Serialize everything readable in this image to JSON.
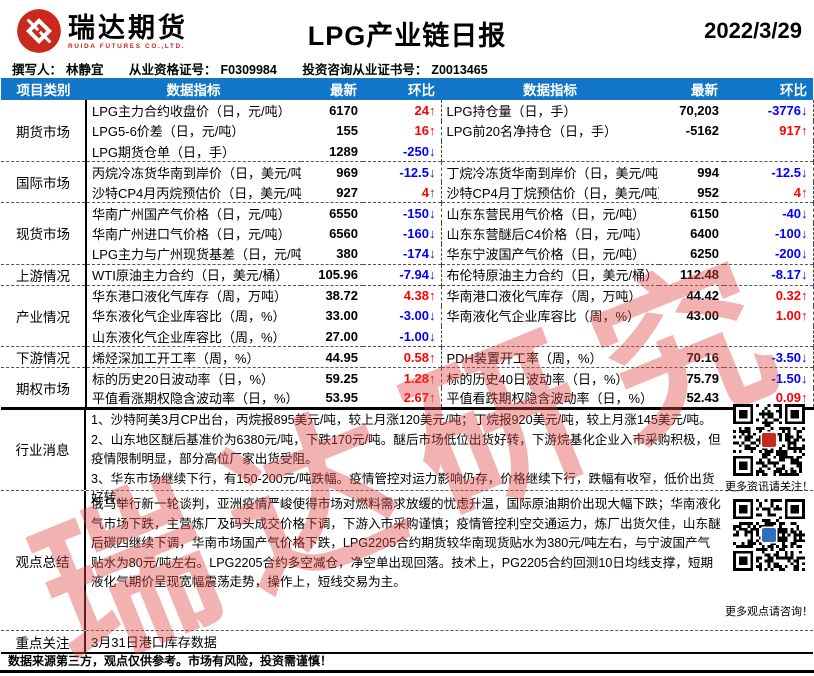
{
  "header": {
    "logo_cn": "瑞达期货",
    "logo_en": "RUIDA FUTURES CO.,LTD.",
    "title": "LPG产业链日报",
    "date": "2022/3/29"
  },
  "meta": {
    "author_label": "撰写人：",
    "author": "林静宜",
    "cert_label": "从业资格证号：",
    "cert": "F0309984",
    "adv_label": "投资咨询从业证书号：",
    "adv": "Z0013465"
  },
  "colors": {
    "header_bg": "#1176c8",
    "up": "#ff0000",
    "down": "#0000ff"
  },
  "table": {
    "headers": [
      "项目类别",
      "数据指标",
      "最新",
      "环比",
      "数据指标",
      "最新",
      "环比"
    ],
    "rows": [
      {
        "cat": "期货市场",
        "li": "LPG主力合约收盘价（日，元/吨）",
        "lv": "6170",
        "lc": "24↑",
        "lcol": "#ff0000",
        "ri": "LPG持仓量（日，手）",
        "rv": "70,203",
        "rc": "-3776↓",
        "rcol": "#0000ff"
      },
      {
        "li": "LPG5-6价差（日，元/吨）",
        "lv": "155",
        "lc": "16↑",
        "lcol": "#ff0000",
        "ri": "LPG前20名净持仓（日，手）",
        "rv": "-5162",
        "rc": "917↑",
        "rcol": "#ff0000"
      },
      {
        "li": "LPG期货仓单（日，手）",
        "lv": "1289",
        "lc": "-250↓",
        "lcol": "#0000ff",
        "ri": "",
        "rv": "",
        "rc": "",
        "rcol": "#000000"
      },
      {
        "cat": "国际市场",
        "li": "丙烷冷冻货华南到岸价（日，美元/吨）",
        "lv": "969",
        "lc": "-12.5↓",
        "lcol": "#0000ff",
        "ri": "丁烷冷冻货华南到岸价（日，美元/吨）",
        "rv": "994",
        "rc": "-12.5↓",
        "rcol": "#0000ff"
      },
      {
        "li": "沙特CP4月丙烷预估价（日，美元/吨）",
        "lv": "927",
        "lc": "4↑",
        "lcol": "#ff0000",
        "ri": "沙特CP4月丁烷预估价（日，美元/吨）",
        "rv": "952",
        "rc": "4↑",
        "rcol": "#ff0000"
      },
      {
        "cat": "现货市场",
        "li": "华南广州国产气价格（日，元/吨）",
        "lv": "6550",
        "lc": "-150↓",
        "lcol": "#0000ff",
        "ri": "山东东营民用气价格（日，元/吨）",
        "rv": "6150",
        "rc": "-40↓",
        "rcol": "#0000ff"
      },
      {
        "li": "华南广州进口气价格（日，元/吨）",
        "lv": "6560",
        "lc": "-160↓",
        "lcol": "#0000ff",
        "ri": "山东东营醚后C4价格（日，元/吨）",
        "rv": "6400",
        "rc": "-100↓",
        "rcol": "#0000ff"
      },
      {
        "li": "LPG主力与广州现货基差（日，元/吨）",
        "lv": "380",
        "lc": "-174↓",
        "lcol": "#0000ff",
        "ri": "华东宁波国产气价格（日，元/吨）",
        "rv": "6250",
        "rc": "-200↓",
        "rcol": "#0000ff"
      },
      {
        "cat": "上游情况",
        "li": "WTI原油主力合约（日，美元/桶）",
        "lv": "105.96",
        "lc": "-7.94↓",
        "lcol": "#0000ff",
        "ri": "布伦特原油主力合约（日，美元/桶）",
        "rv": "112.48",
        "rc": "-8.17↓",
        "rcol": "#0000ff"
      },
      {
        "cat": "产业情况",
        "li": "华东港口液化气库存（周，万吨）",
        "lv": "38.72",
        "lc": "4.38↑",
        "lcol": "#ff0000",
        "ri": "华南港口液化气库存（周，万吨）",
        "rv": "44.42",
        "rc": "0.32↑",
        "rcol": "#ff0000"
      },
      {
        "li": "华东液化气企业库容比（周，%）",
        "lv": "33.00",
        "lc": "-3.00↓",
        "lcol": "#0000ff",
        "ri": "华南液化气企业库容比（周，%）",
        "rv": "43.00",
        "rc": "1.00↑",
        "rcol": "#ff0000"
      },
      {
        "li": "山东液化气企业库容比（周，%）",
        "lv": "27.00",
        "lc": "-1.00↓",
        "lcol": "#0000ff",
        "ri": "",
        "rv": "",
        "rc": "",
        "rcol": "#000000"
      },
      {
        "cat": "下游情况",
        "li": "烯烃深加工开工率（周，%）",
        "lv": "44.95",
        "lc": "0.58↑",
        "lcol": "#ff0000",
        "ri": "PDH装置开工率（周，%）",
        "rv": "70.16",
        "rc": "-3.50↓",
        "rcol": "#0000ff"
      },
      {
        "cat": "期权市场",
        "li": "标的历史20日波动率（日，%）",
        "lv": "59.25",
        "lc": "1.28↑",
        "lcol": "#ff0000",
        "ri": "标的历史40日波动率（日，%）",
        "rv": "75.79",
        "rc": "-1.50↓",
        "rcol": "#0000ff"
      },
      {
        "li": "平值看涨期权隐含波动率（日，%）",
        "lv": "53.95",
        "lc": "2.67↑",
        "lcol": "#ff0000",
        "ri": "平值看跌期权隐含波动率（日，%）",
        "rv": "52.43",
        "rc": "0.09↑",
        "rcol": "#ff0000"
      }
    ]
  },
  "news": {
    "title": "行业消息",
    "lines": [
      "1、沙特阿美3月CP出台，丙烷报895美元/吨，较上月涨120美元/吨；丁烷报920美元/吨，较上月涨145美元/吨。",
      "2、山东地区醚后基准价为6380元/吨，下跌170元/吨。醚后市场低位出货好转，下游烷基化企业入市采购积极，但疫情限制明显，部分高位厂家出货受阻。",
      "3、华东市场继续下行，有150-200元/吨跌幅。疫情管控对运力影响仍存，价格继续下行，跌幅有收窄，低价出货好转。"
    ]
  },
  "summary": {
    "title": "观点总结",
    "text": "俄乌举行新一轮谈判，亚洲疫情严峻使得市场对燃料需求放缓的忧虑升温，国际原油期价出现大幅下跌；华南液化气市场下跌，主营炼厂及码头成交价格下调，下游入市采购谨慎；疫情管控利空交通运力，炼厂出货欠佳，山东醚后碳四继续下调，华南市场国产气价格下跌，LPG2205合约期货较华南现货贴水为380元/吨左右，与宁波国产气贴水为80元/吨左右。LPG2205合约多空减仓，净空单出现回落。技术上，PG2205合约回测10日均线支撑，短期液化气期价呈现宽幅震荡走势，操作上，短线交易为主。"
  },
  "focus": {
    "title": "重点关注",
    "text": "3月31日港口库存数据"
  },
  "qr": {
    "qr1": {
      "caption": "更多资讯请关注！",
      "accent": "#c8281e",
      "seed": 7
    },
    "qr2": {
      "caption": "更多观点请咨询！",
      "accent": "#2f6fbf",
      "seed": 41
    }
  },
  "watermark": {
    "text": "瑞达研究",
    "color": "rgba(224,72,72,0.42)"
  },
  "footer": {
    "disclaimer": "数据来源第三方，观点仅供参考。市场有风险，投资需谨慎！"
  }
}
